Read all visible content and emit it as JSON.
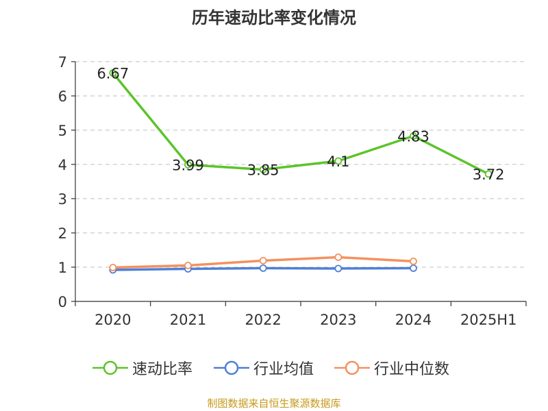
{
  "chart_data": {
    "type": "line",
    "title": "历年速动比率变化情况",
    "categories": [
      "2020",
      "2021",
      "2022",
      "2023",
      "2024",
      "2025H1"
    ],
    "ylim": [
      0,
      7
    ],
    "yticks": [
      0,
      1,
      2,
      3,
      4,
      5,
      6,
      7
    ],
    "grid": true,
    "legend_position": "bottom",
    "series": [
      {
        "name": "速动比率",
        "color": "#5cc42a",
        "values": [
          6.67,
          3.99,
          3.85,
          4.1,
          4.83,
          3.72
        ],
        "labels": [
          "6.67",
          "3.99",
          "3.85",
          "4.1",
          "4.83",
          "3.72"
        ]
      },
      {
        "name": "行业均值",
        "color": "#4f7fd8",
        "values": [
          0.92,
          0.95,
          0.97,
          0.96,
          0.97,
          null
        ]
      },
      {
        "name": "行业中位数",
        "color": "#f39161",
        "values": [
          0.99,
          1.05,
          1.19,
          1.29,
          1.17,
          null
        ]
      }
    ]
  },
  "source_note": "制图数据来自恒生聚源数据库"
}
